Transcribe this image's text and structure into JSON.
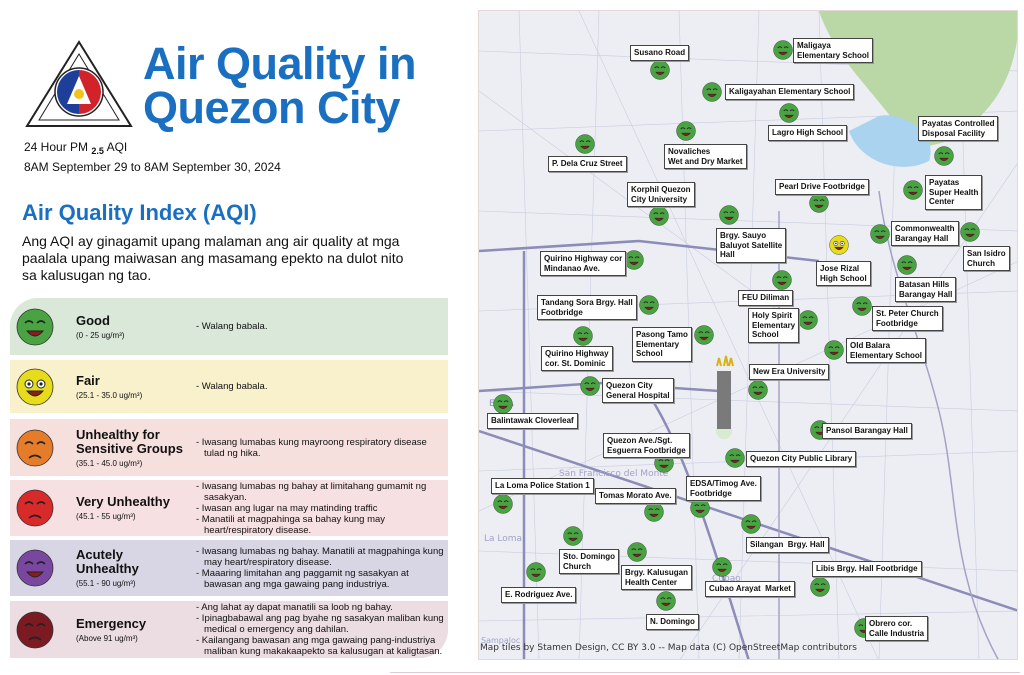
{
  "logo": {
    "text_top": "LUNGSOD QUEZON",
    "text_bottom": "PILIPINAS"
  },
  "header": {
    "title_line1": "Air Quality in",
    "title_line2": "Quezon City",
    "subtitle_prefix": "24 Hour PM",
    "subtitle_pm": "2.5",
    "subtitle_suffix": "AQI",
    "date_range": "8AM September 29 to 8AM September 30, 2024"
  },
  "aqi": {
    "heading": "Air Quality Index (AQI)",
    "description": "Ang AQI ay ginagamit upang malaman ang air quality at mga paalala upang maiwasan ang masamang epekto na dulot nito sa kalusugan ng tao.",
    "categories": [
      {
        "name": "Good",
        "range": "(0 - 25 ug/m³)",
        "color": "#4aa343",
        "bg": "#d9e8d9",
        "advice": [
          "- Walang babala."
        ]
      },
      {
        "name": "Fair",
        "range": "(25.1 - 35.0 ug/m³)",
        "color": "#e6dc1c",
        "bg": "#f8f1cc",
        "advice": [
          "- Walang babala."
        ]
      },
      {
        "name": "Unhealthy for Sensitive Groups",
        "range": "(35.1 - 45.0 ug/m³)",
        "color": "#e57c2a",
        "bg": "#f6e0de",
        "advice": [
          "- Iwasang lumabas kung mayroong respiratory disease tulad ng hika."
        ]
      },
      {
        "name": "Very Unhealthy",
        "range": "(45.1 - 55 ug/m³)",
        "color": "#d92a2a",
        "bg": "#f6e0e2",
        "advice": [
          "- Iwasang lumabas ng bahay at limitahang gumamit ng sasakyan.",
          "- Iwasan ang lugar na may matinding traffic",
          "- Manatili at magpahinga sa bahay kung may heart/respiratory disease."
        ]
      },
      {
        "name": "Acutely Unhealthy",
        "range": "(55.1 - 90 ug/m³)",
        "color": "#7a47a0",
        "bg": "#d8d6e4",
        "advice": [
          "- Iwasang lumabas ng bahay. Manatili at magpahinga kung may heart/respiratory disease.",
          "- Maaaring limitahan ang paggamit ng sasakyan at bawasan ang mga gawaing pang industriya."
        ]
      },
      {
        "name": "Emergency",
        "range": "(Above 91 ug/m³)",
        "color": "#7c1a22",
        "bg": "#ecdde3",
        "advice": [
          "- Ang lahat ay dapat manatili sa loob ng bahay.",
          "- Ipinagbabawal ang pag byahe ng sasakyan maliban kung medical o emergency ang dahilan.",
          "- Kailangang bawasan ang mga gawaing pang-industriya maliban kung makakaapekto sa kalusugan at kaligtasan."
        ]
      }
    ]
  },
  "map": {
    "credit": "Map tiles by Stamen Design, CC BY 3.0 -- Map data (C) OpenStreetMap contributors",
    "place_labels": [
      "EDSA",
      "San Francisco del Monte",
      "La Loma",
      "Cubao",
      "Sampaloc"
    ],
    "stations": [
      {
        "name": "Susano Road",
        "status": "good"
      },
      {
        "name": "Maligaya\nElementary School",
        "status": "good"
      },
      {
        "name": "Kaligayahan Elementary School",
        "status": "good"
      },
      {
        "name": "Lagro High School",
        "status": "good"
      },
      {
        "name": "Novaliches\nWet and Dry Market",
        "status": "good"
      },
      {
        "name": "P. Dela Cruz Street",
        "status": "good"
      },
      {
        "name": "Payatas Controlled\nDisposal Facility",
        "status": "good"
      },
      {
        "name": "Korphil Quezon\nCity University",
        "status": "good"
      },
      {
        "name": "Pearl Drive Footbridge",
        "status": "good"
      },
      {
        "name": "Payatas\nSuper Health\nCenter",
        "status": "good"
      },
      {
        "name": "Brgy. Sauyo\nBaluyot Satellite\nHall",
        "status": "good"
      },
      {
        "name": "Commonwealth\nBarangay Hall",
        "status": "good"
      },
      {
        "name": "San Isidro\nChurch",
        "status": "good"
      },
      {
        "name": "Jose Rizal\nHigh School",
        "status": "fair"
      },
      {
        "name": "Quirino Highway cor\nMindanao Ave.",
        "status": "good"
      },
      {
        "name": "Batasan Hills\nBarangay Hall",
        "status": "good"
      },
      {
        "name": "FEU Diliman",
        "status": "good"
      },
      {
        "name": "Tandang Sora Brgy. Hall\nFootbridge",
        "status": "good"
      },
      {
        "name": "St. Peter Church\nFootbridge",
        "status": "good"
      },
      {
        "name": "Holy Spirit\nElementary\nSchool",
        "status": "good"
      },
      {
        "name": "Quirino Highway\ncor. St. Dominic",
        "status": "good"
      },
      {
        "name": "Pasong Tamo\nElementary\nSchool",
        "status": "good"
      },
      {
        "name": "Old Balara\nElementary School",
        "status": "good"
      },
      {
        "name": "New Era University",
        "status": "good"
      },
      {
        "name": "Quezon City\nGeneral Hospital",
        "status": "good"
      },
      {
        "name": "Balintawak Cloverleaf",
        "status": "good"
      },
      {
        "name": "Pansol Barangay Hall",
        "status": "good"
      },
      {
        "name": "Quezon Ave./Sgt.\nEsguerra Footbridge",
        "status": "good"
      },
      {
        "name": "Quezon City Public Library",
        "status": "good"
      },
      {
        "name": "La Loma Police Station 1",
        "status": "good"
      },
      {
        "name": "Tomas Morato Ave.",
        "status": "good"
      },
      {
        "name": "EDSA/Timog Ave.\nFootbridge",
        "status": "good"
      },
      {
        "name": "Silangan  Brgy. Hall",
        "status": "good"
      },
      {
        "name": "Sto. Domingo\nChurch",
        "status": "good"
      },
      {
        "name": "Brgy. Kalusugan\nHealth Center",
        "status": "good"
      },
      {
        "name": "E. Rodriguez Ave.",
        "status": "good"
      },
      {
        "name": "Cubao Arayat  Market",
        "status": "good"
      },
      {
        "name": "Libis Brgy. Hall Footbridge",
        "status": "good"
      },
      {
        "name": "N. Domingo",
        "status": "good"
      },
      {
        "name": "Obrero cor.\nCalle Industria",
        "status": "good"
      }
    ]
  }
}
